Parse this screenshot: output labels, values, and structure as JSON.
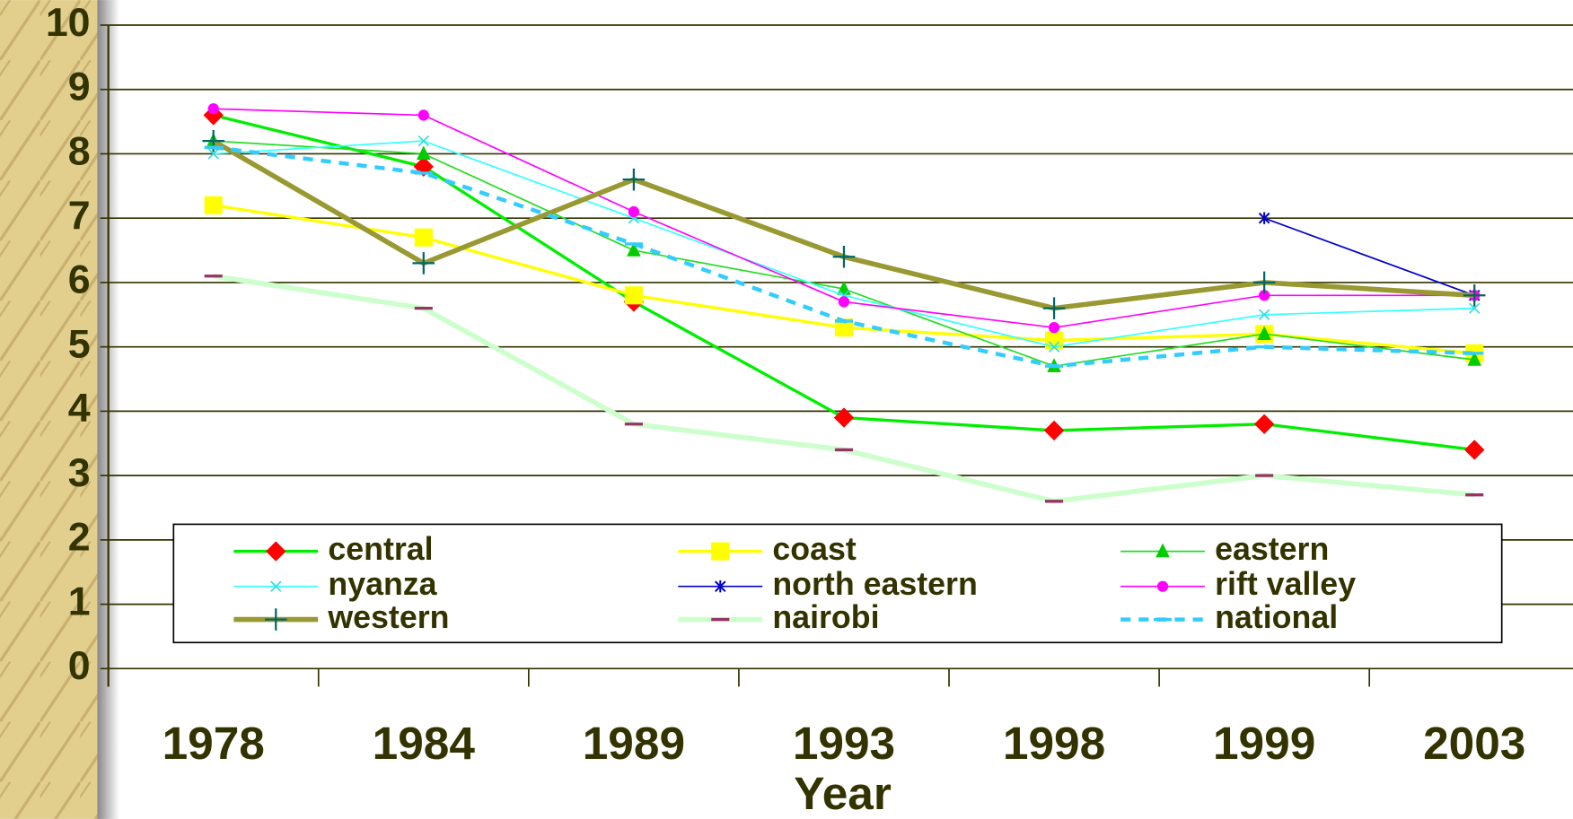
{
  "chart_data": {
    "type": "line",
    "x_label": "Year",
    "categories": [
      "1978",
      "1984",
      "1989",
      "1993",
      "1998",
      "1999",
      "2003"
    ],
    "ylim": [
      0,
      10
    ],
    "yticks": [
      0,
      1,
      2,
      3,
      4,
      5,
      6,
      7,
      8,
      9,
      10
    ],
    "grid": true,
    "legend": "bottom",
    "series": [
      {
        "name": "central",
        "color": "#00ee00",
        "marker": "diamond",
        "marker_color": "#ff0000",
        "width": 3,
        "values": [
          8.6,
          7.8,
          5.7,
          3.9,
          3.7,
          3.8,
          3.4
        ]
      },
      {
        "name": "coast",
        "color": "#ffff00",
        "marker": "square",
        "marker_color": "#ffff00",
        "width": 3,
        "values": [
          7.2,
          6.7,
          5.8,
          5.3,
          5.1,
          5.2,
          4.9
        ]
      },
      {
        "name": "eastern",
        "color": "#22dd22",
        "marker": "triangle",
        "marker_color": "#00cc00",
        "width": 1.5,
        "values": [
          8.2,
          8.0,
          6.5,
          5.9,
          4.7,
          5.2,
          4.8
        ]
      },
      {
        "name": "nyanza",
        "color": "#33ffff",
        "marker": "x",
        "marker_color": "#33dddd",
        "width": 1.5,
        "values": [
          8.0,
          8.2,
          7.0,
          5.8,
          5.0,
          5.5,
          5.6
        ]
      },
      {
        "name": "north eastern",
        "color": "#0000cc",
        "marker": "star",
        "marker_color": "#0000cc",
        "width": 1.5,
        "values": [
          null,
          null,
          null,
          null,
          null,
          7.0,
          5.8
        ]
      },
      {
        "name": "rift valley",
        "color": "#ff00ff",
        "marker": "circle",
        "marker_color": "#ff00ff",
        "width": 1.5,
        "values": [
          8.7,
          8.6,
          7.1,
          5.7,
          5.3,
          5.8,
          5.8
        ]
      },
      {
        "name": "western",
        "color": "#999933",
        "marker": "plus",
        "marker_color": "#006666",
        "width": 5,
        "values": [
          8.2,
          6.3,
          7.6,
          6.4,
          5.6,
          6.0,
          5.8
        ]
      },
      {
        "name": "nairobi",
        "color": "#ccffcc",
        "marker": "dash",
        "marker_color": "#993366",
        "width": 5,
        "values": [
          6.1,
          5.6,
          3.8,
          3.4,
          2.6,
          3.0,
          2.7
        ]
      },
      {
        "name": "national",
        "color": "#33ccff",
        "marker": "dash",
        "marker_color": "#33ccff",
        "width": 4,
        "dashed": true,
        "values": [
          8.1,
          7.7,
          6.6,
          5.4,
          4.7,
          5.0,
          4.9
        ]
      }
    ]
  }
}
